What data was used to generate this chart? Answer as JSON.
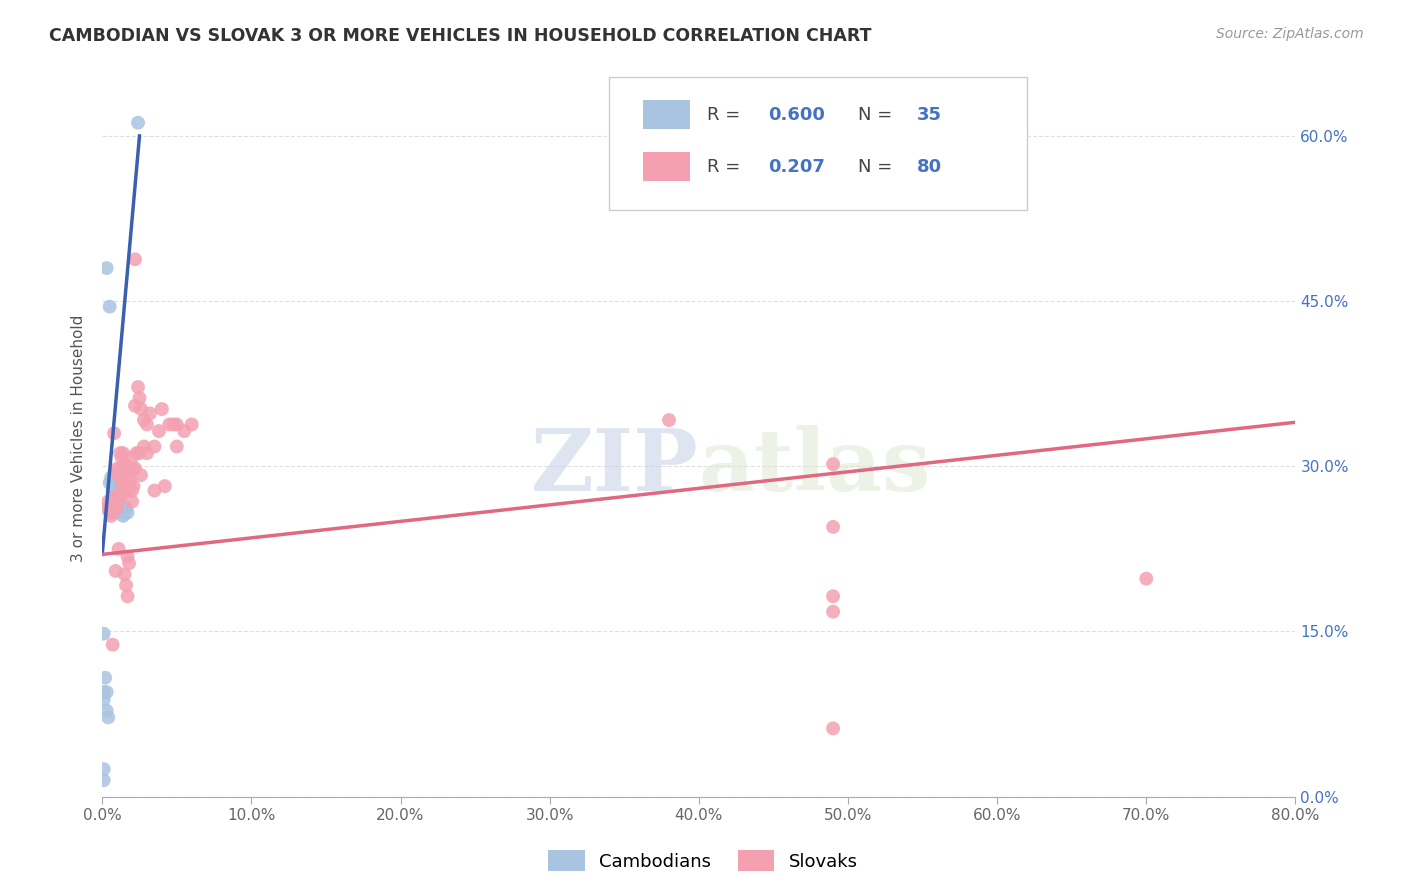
{
  "title": "CAMBODIAN VS SLOVAK 3 OR MORE VEHICLES IN HOUSEHOLD CORRELATION CHART",
  "source": "Source: ZipAtlas.com",
  "ylabel": "3 or more Vehicles in Household",
  "xmin": 0.0,
  "xmax": 0.8,
  "ymin": 0.0,
  "ymax": 0.65,
  "cambodian_color": "#a8c4e0",
  "slovak_color": "#f4a0b0",
  "cambodian_line_color": "#3a60b0",
  "slovak_line_color": "#e06880",
  "cambodian_R": 0.6,
  "cambodian_N": 35,
  "slovak_R": 0.207,
  "slovak_N": 80,
  "legend_label_1": "Cambodians",
  "legend_label_2": "Slovaks",
  "watermark_1": "ZIP",
  "watermark_2": "atlas",
  "background_color": "#ffffff",
  "grid_color": "#e0e0e0",
  "right_ytick_color": "#4472c4",
  "ytick_vals": [
    0.0,
    0.15,
    0.3,
    0.45,
    0.6
  ],
  "ytick_labels": [
    "0.0%",
    "15.0%",
    "30.0%",
    "45.0%",
    "60.0%"
  ],
  "xtick_vals": [
    0.0,
    0.1,
    0.2,
    0.3,
    0.4,
    0.5,
    0.6,
    0.7,
    0.8
  ],
  "xtick_labels": [
    "0.0%",
    "10.0%",
    "20.0%",
    "30.0%",
    "40.0%",
    "50.0%",
    "60.0%",
    "70.0%",
    "80.0%"
  ],
  "cambodian_scatter": [
    [
      0.003,
      0.48
    ],
    [
      0.005,
      0.445
    ],
    [
      0.005,
      0.285
    ],
    [
      0.006,
      0.29
    ],
    [
      0.007,
      0.285
    ],
    [
      0.007,
      0.278
    ],
    [
      0.008,
      0.278
    ],
    [
      0.008,
      0.272
    ],
    [
      0.008,
      0.268
    ],
    [
      0.009,
      0.272
    ],
    [
      0.009,
      0.268
    ],
    [
      0.009,
      0.265
    ],
    [
      0.01,
      0.27
    ],
    [
      0.01,
      0.265
    ],
    [
      0.01,
      0.26
    ],
    [
      0.011,
      0.262
    ],
    [
      0.011,
      0.258
    ],
    [
      0.012,
      0.268
    ],
    [
      0.012,
      0.262
    ],
    [
      0.013,
      0.26
    ],
    [
      0.014,
      0.258
    ],
    [
      0.014,
      0.255
    ],
    [
      0.015,
      0.26
    ],
    [
      0.016,
      0.262
    ],
    [
      0.017,
      0.258
    ],
    [
      0.002,
      0.108
    ],
    [
      0.003,
      0.095
    ],
    [
      0.003,
      0.078
    ],
    [
      0.004,
      0.072
    ],
    [
      0.001,
      0.148
    ],
    [
      0.001,
      0.095
    ],
    [
      0.001,
      0.088
    ],
    [
      0.024,
      0.612
    ],
    [
      0.001,
      0.025
    ],
    [
      0.001,
      0.015
    ]
  ],
  "slovak_scatter": [
    [
      0.003,
      0.262
    ],
    [
      0.004,
      0.268
    ],
    [
      0.005,
      0.262
    ],
    [
      0.005,
      0.258
    ],
    [
      0.006,
      0.26
    ],
    [
      0.006,
      0.255
    ],
    [
      0.007,
      0.265
    ],
    [
      0.007,
      0.258
    ],
    [
      0.007,
      0.138
    ],
    [
      0.008,
      0.33
    ],
    [
      0.008,
      0.272
    ],
    [
      0.008,
      0.265
    ],
    [
      0.009,
      0.295
    ],
    [
      0.009,
      0.268
    ],
    [
      0.009,
      0.205
    ],
    [
      0.01,
      0.298
    ],
    [
      0.01,
      0.268
    ],
    [
      0.01,
      0.262
    ],
    [
      0.011,
      0.292
    ],
    [
      0.011,
      0.272
    ],
    [
      0.011,
      0.225
    ],
    [
      0.012,
      0.312
    ],
    [
      0.012,
      0.298
    ],
    [
      0.012,
      0.272
    ],
    [
      0.013,
      0.308
    ],
    [
      0.013,
      0.292
    ],
    [
      0.013,
      0.282
    ],
    [
      0.014,
      0.312
    ],
    [
      0.014,
      0.298
    ],
    [
      0.014,
      0.282
    ],
    [
      0.015,
      0.302
    ],
    [
      0.015,
      0.282
    ],
    [
      0.015,
      0.202
    ],
    [
      0.016,
      0.298
    ],
    [
      0.016,
      0.278
    ],
    [
      0.016,
      0.192
    ],
    [
      0.017,
      0.288
    ],
    [
      0.017,
      0.218
    ],
    [
      0.017,
      0.182
    ],
    [
      0.018,
      0.298
    ],
    [
      0.018,
      0.278
    ],
    [
      0.018,
      0.212
    ],
    [
      0.019,
      0.288
    ],
    [
      0.02,
      0.308
    ],
    [
      0.02,
      0.278
    ],
    [
      0.02,
      0.268
    ],
    [
      0.021,
      0.298
    ],
    [
      0.021,
      0.282
    ],
    [
      0.022,
      0.355
    ],
    [
      0.022,
      0.298
    ],
    [
      0.022,
      0.488
    ],
    [
      0.023,
      0.312
    ],
    [
      0.024,
      0.372
    ],
    [
      0.025,
      0.362
    ],
    [
      0.025,
      0.312
    ],
    [
      0.026,
      0.352
    ],
    [
      0.026,
      0.292
    ],
    [
      0.028,
      0.342
    ],
    [
      0.028,
      0.318
    ],
    [
      0.03,
      0.338
    ],
    [
      0.03,
      0.312
    ],
    [
      0.032,
      0.348
    ],
    [
      0.035,
      0.318
    ],
    [
      0.035,
      0.278
    ],
    [
      0.038,
      0.332
    ],
    [
      0.04,
      0.352
    ],
    [
      0.042,
      0.282
    ],
    [
      0.045,
      0.338
    ],
    [
      0.048,
      0.338
    ],
    [
      0.05,
      0.338
    ],
    [
      0.05,
      0.318
    ],
    [
      0.055,
      0.332
    ],
    [
      0.06,
      0.338
    ],
    [
      0.38,
      0.342
    ],
    [
      0.7,
      0.198
    ],
    [
      0.49,
      0.302
    ],
    [
      0.49,
      0.245
    ],
    [
      0.49,
      0.062
    ],
    [
      0.49,
      0.182
    ],
    [
      0.49,
      0.168
    ]
  ]
}
